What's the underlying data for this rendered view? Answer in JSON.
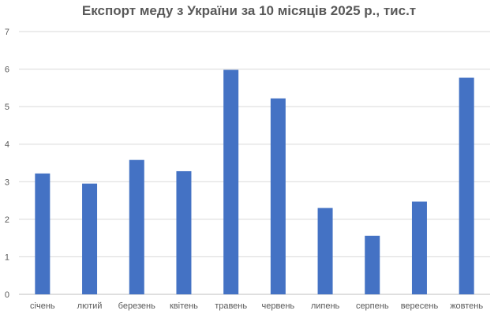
{
  "chart_data": {
    "type": "bar",
    "title": "Експорт меду з України за 10 місяців 2025 р., тис.т",
    "categories": [
      "січень",
      "лютий",
      "березень",
      "квітень",
      "травень",
      "червень",
      "липень",
      "серпень",
      "вересень",
      "жовтень"
    ],
    "values": [
      3.22,
      2.95,
      3.58,
      3.28,
      5.98,
      5.22,
      2.3,
      1.56,
      2.47,
      5.77
    ],
    "ylim": [
      0,
      7
    ],
    "yticks": [
      "0",
      "1",
      "2",
      "3",
      "4",
      "5",
      "6",
      "7"
    ],
    "xlabel": "",
    "ylabel": "",
    "grid": true,
    "legend": "none",
    "bar_color": "#4472c4"
  }
}
